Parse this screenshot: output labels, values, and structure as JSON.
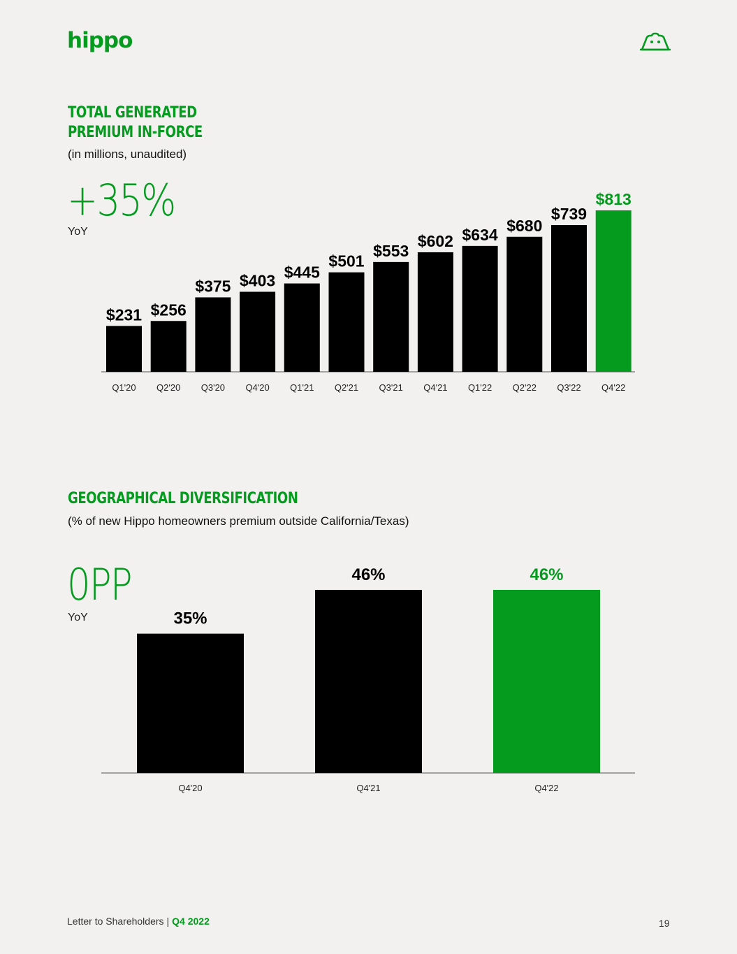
{
  "brand": {
    "logo_text": "hippo",
    "mascot_icon": "hippo-face-icon",
    "green": "#049b1f"
  },
  "section1": {
    "title_line1": "TOTAL GENERATED",
    "title_line2": "PREMIUM IN-FORCE",
    "subtitle": "(in millions, unaudited)",
    "stat": "+35%",
    "stat_label": "YoY"
  },
  "section2": {
    "title": "GEOGRAPHICAL DIVERSIFICATION",
    "subtitle": "(% of new Hippo homeowners premium outside California/Texas)",
    "stat": "0PP",
    "stat_label": "YoY"
  },
  "chart_data": [
    {
      "type": "bar",
      "categories": [
        "Q1'20",
        "Q2'20",
        "Q3'20",
        "Q4'20",
        "Q1'21",
        "Q2'21",
        "Q3'21",
        "Q4'21",
        "Q1'22",
        "Q2'22",
        "Q3'22",
        "Q4'22"
      ],
      "values": [
        231,
        256,
        375,
        403,
        445,
        501,
        553,
        602,
        634,
        680,
        739,
        813
      ],
      "data_labels": [
        "$231",
        "$256",
        "$375",
        "$403",
        "$445",
        "$501",
        "$553",
        "$602",
        "$634",
        "$680",
        "$739",
        "$813"
      ],
      "ylim": [
        0,
        813
      ],
      "highlight_index": 11,
      "colors": {
        "bar": "#000000",
        "highlight": "#049b1f"
      },
      "grid": false
    },
    {
      "type": "bar",
      "categories": [
        "Q4'20",
        "Q4'21",
        "Q4'22"
      ],
      "values": [
        35,
        46,
        46
      ],
      "data_labels": [
        "35%",
        "46%",
        "46%"
      ],
      "ylim": [
        0,
        46
      ],
      "highlight_index": 2,
      "colors": {
        "bar": "#000000",
        "highlight": "#049b1f"
      },
      "grid": false
    }
  ],
  "footer": {
    "doc_label": "Letter to Shareholders",
    "separator": "|",
    "quarter": "Q4 2022",
    "page_number": "19"
  }
}
